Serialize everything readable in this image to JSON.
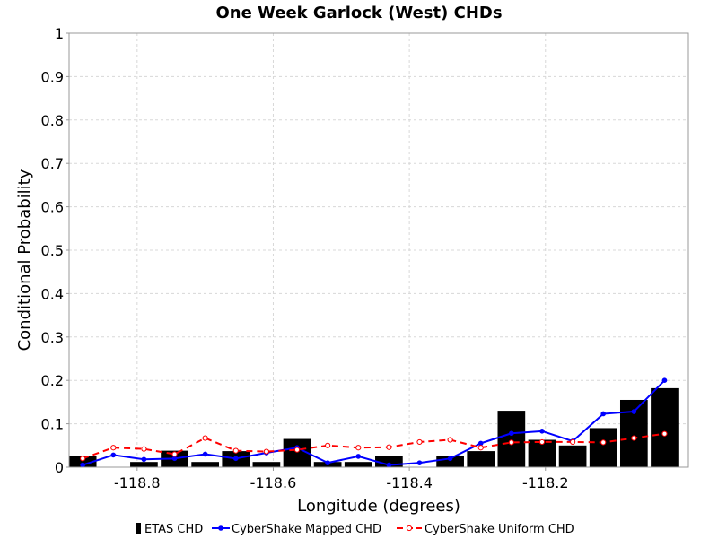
{
  "chart_data": {
    "type": "bar",
    "title": "One Week Garlock (West) CHDs",
    "xlabel": "Longitude (degrees)",
    "ylabel": "Conditional Probability",
    "xlim": [
      -118.9,
      -117.99
    ],
    "ylim": [
      0,
      1
    ],
    "x_ticks": [
      -118.8,
      -118.6,
      -118.4,
      -118.2
    ],
    "x_tick_labels": [
      "-118.8",
      "-118.6",
      "-118.4",
      "-118.2"
    ],
    "y_ticks": [
      0,
      0.1,
      0.2,
      0.3,
      0.4,
      0.5,
      0.6,
      0.7,
      0.8,
      0.9,
      1
    ],
    "y_tick_labels": [
      "0",
      "0.1",
      "0.2",
      "0.3",
      "0.4",
      "0.5",
      "0.6",
      "0.7",
      "0.8",
      "0.9",
      "1"
    ],
    "grid": true,
    "legend_position": "bottom",
    "x": [
      -118.88,
      -118.835,
      -118.79,
      -118.745,
      -118.7,
      -118.655,
      -118.61,
      -118.565,
      -118.52,
      -118.475,
      -118.43,
      -118.385,
      -118.34,
      -118.295,
      -118.25,
      -118.205,
      -118.16,
      -118.115,
      -118.07,
      -118.025
    ],
    "series": [
      {
        "name": "ETAS CHD",
        "kind": "bar",
        "color": "#000000",
        "values": [
          0.025,
          0,
          0.012,
          0.038,
          0.012,
          0.037,
          0.012,
          0.065,
          0.012,
          0.012,
          0.025,
          0,
          0.025,
          0.037,
          0.13,
          0.063,
          0.05,
          0.09,
          0.155,
          0.182
        ]
      },
      {
        "name": "CyberShake Mapped CHD",
        "kind": "line",
        "style": "solid",
        "marker": "filled-circle",
        "color": "#0000ff",
        "values": [
          0.005,
          0.028,
          0.018,
          0.02,
          0.03,
          0.02,
          0.033,
          0.045,
          0.01,
          0.025,
          0.005,
          0.01,
          0.02,
          0.055,
          0.078,
          0.083,
          0.06,
          0.123,
          0.128,
          0.2
        ]
      },
      {
        "name": "CyberShake Uniform CHD",
        "kind": "line",
        "style": "dashed",
        "marker": "open-circle",
        "color": "#ff0000",
        "values": [
          0.02,
          0.045,
          0.042,
          0.03,
          0.067,
          0.038,
          0.036,
          0.04,
          0.05,
          0.045,
          0.046,
          0.058,
          0.063,
          0.045,
          0.057,
          0.058,
          0.058,
          0.057,
          0.067,
          0.077
        ]
      }
    ]
  }
}
